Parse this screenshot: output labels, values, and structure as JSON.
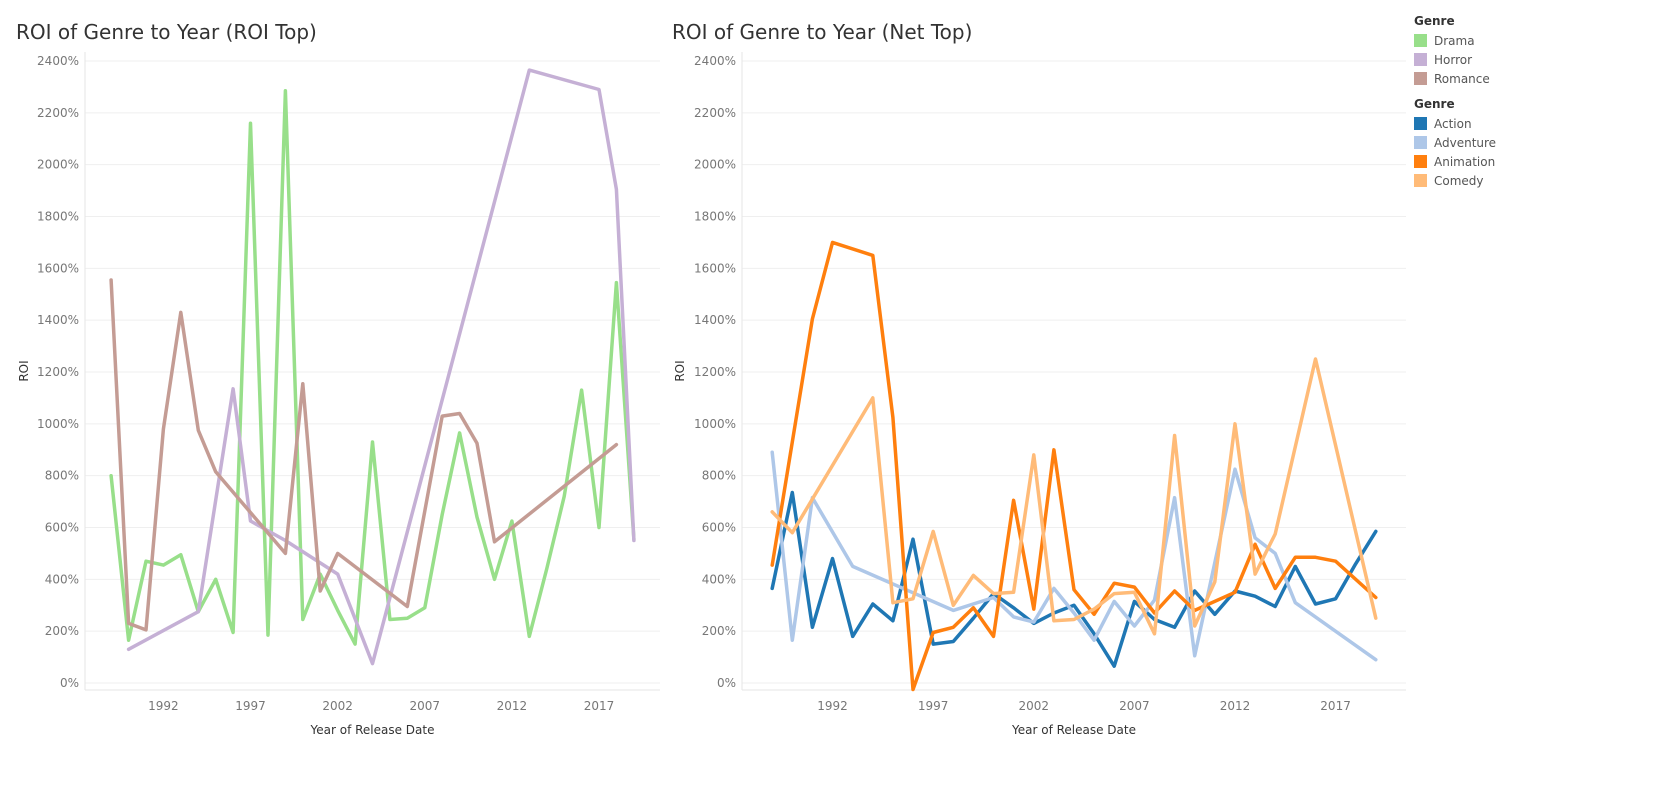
{
  "chart_data": [
    {
      "type": "line",
      "title": "ROI of Genre to Year (ROI Top)",
      "xlabel": "Year of Release Date",
      "ylabel": "ROI",
      "xlim": [
        1987.5,
        2020.5
      ],
      "ylim": [
        0,
        2400
      ],
      "x_ticks": [
        "1992",
        "1997",
        "2002",
        "2007",
        "2012",
        "2017"
      ],
      "y_ticks": [
        "0%",
        "200%",
        "400%",
        "600%",
        "800%",
        "1000%",
        "1200%",
        "1400%",
        "1600%",
        "1800%",
        "2000%",
        "2200%",
        "2400%"
      ],
      "grid": true,
      "legend": {
        "title": "Genre",
        "position": "top-right"
      },
      "series": [
        {
          "name": "Drama",
          "color": "#98df8a",
          "x": [
            1989,
            1990,
            1991,
            1992,
            1993,
            1994,
            1995,
            1996,
            1997,
            1998,
            1999,
            2000,
            2001,
            2002,
            2003,
            2004,
            2005,
            2006,
            2007,
            2008,
            2009,
            2010,
            2011,
            2012,
            2013,
            2014,
            2015,
            2016,
            2017,
            2018,
            2019
          ],
          "y": [
            800,
            165,
            470,
            455,
            495,
            275,
            400,
            195,
            2160,
            185,
            2285,
            245,
            420,
            280,
            150,
            930,
            245,
            250,
            290,
            650,
            965,
            640,
            400,
            625,
            180,
            440,
            720,
            1130,
            600,
            1545,
            555
          ]
        },
        {
          "name": "Horror",
          "color": "#c5b0d5",
          "x": [
            1990,
            1994,
            1996,
            1997,
            1999,
            2002,
            2004,
            2013,
            2017,
            2018,
            2019
          ],
          "y": [
            130,
            275,
            1135,
            625,
            550,
            420,
            75,
            2365,
            2290,
            1905,
            550
          ]
        },
        {
          "name": "Romance",
          "color": "#c49c94",
          "x": [
            1989,
            1990,
            1991,
            1992,
            1993,
            1994,
            1995,
            1999,
            2000,
            2001,
            2002,
            2006,
            2008,
            2009,
            2010,
            2011,
            2018
          ],
          "y": [
            1555,
            230,
            205,
            980,
            1430,
            975,
            815,
            500,
            1155,
            355,
            500,
            295,
            1030,
            1040,
            925,
            545,
            920
          ]
        }
      ]
    },
    {
      "type": "line",
      "title": "ROI of Genre to Year (Net Top)",
      "xlabel": "Year of Release Date",
      "ylabel": "ROI",
      "xlim": [
        1987.5,
        2020.5
      ],
      "ylim": [
        0,
        2400
      ],
      "x_ticks": [
        "1992",
        "1997",
        "2002",
        "2007",
        "2012",
        "2017"
      ],
      "y_ticks": [
        "0%",
        "200%",
        "400%",
        "600%",
        "800%",
        "1000%",
        "1200%",
        "1400%",
        "1600%",
        "1800%",
        "2000%",
        "2200%",
        "2400%"
      ],
      "grid": true,
      "legend": {
        "title": "Genre",
        "position": "top-right"
      },
      "series": [
        {
          "name": "Action",
          "color": "#1f77b4",
          "x": [
            1989,
            1990,
            1991,
            1992,
            1993,
            1994,
            1995,
            1996,
            1997,
            1998,
            1999,
            2000,
            2001,
            2002,
            2003,
            2004,
            2005,
            2006,
            2007,
            2008,
            2009,
            2010,
            2011,
            2012,
            2013,
            2014,
            2015,
            2016,
            2017,
            2018,
            2019
          ],
          "y": [
            365,
            735,
            215,
            480,
            180,
            305,
            240,
            555,
            150,
            160,
            250,
            345,
            290,
            230,
            270,
            300,
            190,
            65,
            315,
            245,
            215,
            355,
            265,
            355,
            335,
            295,
            450,
            305,
            325,
            460,
            585
          ]
        },
        {
          "name": "Adventure",
          "color": "#aec7e8",
          "x": [
            1989,
            1990,
            1991,
            1993,
            1998,
            2000,
            2001,
            2002,
            2003,
            2004,
            2005,
            2006,
            2007,
            2008,
            2009,
            2010,
            2012,
            2013,
            2014,
            2015,
            2019
          ],
          "y": [
            890,
            165,
            715,
            450,
            280,
            330,
            255,
            235,
            365,
            270,
            165,
            315,
            220,
            320,
            715,
            105,
            825,
            560,
            500,
            310,
            90
          ]
        },
        {
          "name": "Animation",
          "color": "#ff7f0e",
          "x": [
            1989,
            1991,
            1992,
            1994,
            1995,
            1996,
            1997,
            1998,
            1999,
            2000,
            2001,
            2002,
            2003,
            2004,
            2005,
            2006,
            2007,
            2008,
            2009,
            2010,
            2012,
            2013,
            2014,
            2015,
            2016,
            2017,
            2019
          ],
          "y": [
            455,
            1405,
            1700,
            1650,
            1025,
            -25,
            195,
            215,
            290,
            180,
            705,
            285,
            900,
            360,
            265,
            385,
            370,
            270,
            355,
            280,
            350,
            535,
            365,
            485,
            485,
            470,
            330
          ]
        },
        {
          "name": "Comedy",
          "color": "#ffbb78",
          "x": [
            1989,
            1990,
            1994,
            1995,
            1996,
            1997,
            1998,
            1999,
            2000,
            2001,
            2002,
            2003,
            2004,
            2005,
            2006,
            2007,
            2008,
            2009,
            2010,
            2011,
            2012,
            2013,
            2014,
            2016,
            2019
          ],
          "y": [
            660,
            580,
            1100,
            310,
            325,
            585,
            300,
            415,
            345,
            350,
            880,
            240,
            245,
            285,
            345,
            350,
            190,
            955,
            220,
            390,
            1000,
            420,
            575,
            1250,
            250
          ]
        }
      ]
    }
  ]
}
